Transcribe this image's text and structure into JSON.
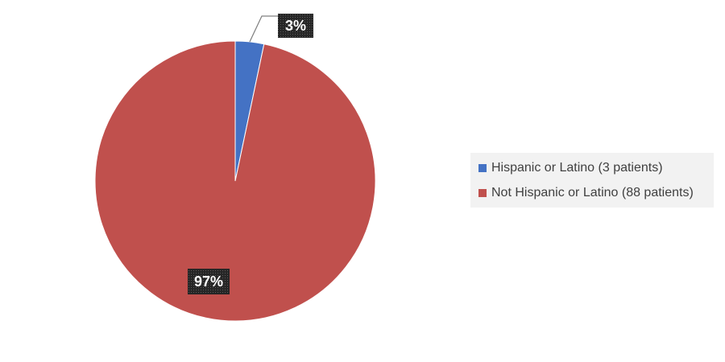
{
  "chart_data": {
    "type": "pie",
    "categories": [
      "Hispanic or Latino (3 patients)",
      "Not Hispanic or Latino (88 patients)"
    ],
    "values": [
      3,
      88
    ],
    "data_labels": [
      "3%",
      "97%"
    ],
    "colors": [
      "#4472c4",
      "#c0504d"
    ],
    "title": "",
    "legend_position": "right",
    "legend": [
      {
        "label": "Hispanic or Latino (3 patients)",
        "color": "#4472c4"
      },
      {
        "label": "Not Hispanic or Latino (88 patients)",
        "color": "#c0504d"
      }
    ]
  }
}
